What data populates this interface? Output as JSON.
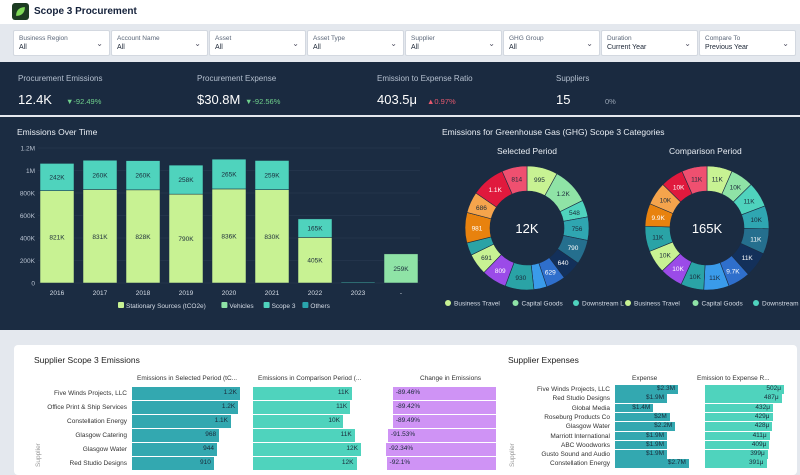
{
  "app": {
    "title": "Scope 3 Procurement",
    "logo_icon": "leaf-icon"
  },
  "filters": [
    {
      "label": "Business Region",
      "value": "All"
    },
    {
      "label": "Account Name",
      "value": "All"
    },
    {
      "label": "Asset",
      "value": "All"
    },
    {
      "label": "Asset Type",
      "value": "All"
    },
    {
      "label": "Supplier",
      "value": "All"
    },
    {
      "label": "GHG Group",
      "value": "All"
    },
    {
      "label": "Duration",
      "value": "Current Year"
    },
    {
      "label": "Compare To",
      "value": "Previous Year"
    }
  ],
  "kpis": [
    {
      "label": "Procurement Emissions",
      "value": "12.4K",
      "delta": "▼-92.49%",
      "trend": "down"
    },
    {
      "label": "Procurement Expense",
      "value": "$30.8M",
      "delta": "▼-92.56%",
      "trend": "down"
    },
    {
      "label": "Emission to Expense Ratio",
      "value": "403.5μ",
      "delta": "▲0.97%",
      "trend": "up"
    },
    {
      "label": "Suppliers",
      "value": "15",
      "delta": "0%",
      "trend": "flat"
    }
  ],
  "colors": {
    "up": "#e8596e",
    "down": "#6fd08c",
    "flat": "#9aa6b5"
  },
  "chart_data": [
    {
      "type": "bar",
      "stacked": true,
      "title": "Emissions Over Time",
      "categories": [
        "2016",
        "2017",
        "2018",
        "2019",
        "2020",
        "2021",
        "2022",
        "2023",
        "-"
      ],
      "yticks": [
        "0",
        "200K",
        "400K",
        "600K",
        "800K",
        "1M",
        "1.2M"
      ],
      "ylim": [
        0,
        1200000
      ],
      "grid": true,
      "legend": "bottom",
      "series": [
        {
          "name": "Stationary Sources (tCO2e)",
          "color": "#c8f293",
          "values": [
            821000,
            831000,
            828000,
            790000,
            836000,
            830000,
            405000,
            0,
            0
          ],
          "labels": [
            "821K",
            "831K",
            "828K",
            "790K",
            "836K",
            "830K",
            "405K",
            "",
            ""
          ]
        },
        {
          "name": "Vehicles",
          "color": "#8fe3a6",
          "values": [
            0,
            0,
            0,
            0,
            0,
            0,
            0,
            0,
            259000
          ],
          "labels": [
            "",
            "",
            "",
            "",
            "",
            "",
            "",
            "",
            "259K"
          ]
        },
        {
          "name": "Scope 3",
          "color": "#4fd3bd",
          "values": [
            242000,
            260000,
            260000,
            258000,
            265000,
            259000,
            165000,
            8000,
            0
          ],
          "labels": [
            "242K",
            "260K",
            "260K",
            "258K",
            "265K",
            "259K",
            "165K",
            "",
            ""
          ]
        },
        {
          "name": "Others",
          "color": "#2aa5ad",
          "values": [
            0,
            0,
            0,
            0,
            0,
            0,
            0,
            0,
            0
          ],
          "labels": [
            "",
            "",
            "",
            "",
            "",
            "",
            "",
            "",
            ""
          ]
        }
      ]
    },
    {
      "type": "pie",
      "title": "Emissions for Greenhouse Gas (GHG) Scope 3 Categories",
      "subtitle": "Selected Period",
      "center_label": "12K",
      "values": [
        995,
        1200,
        548,
        756,
        790,
        640,
        629,
        420,
        930,
        809,
        691,
        410,
        981,
        686,
        1100,
        814
      ],
      "labels": [
        "995",
        "1.2K",
        "548",
        "756",
        "790",
        "640",
        "629",
        "",
        "930",
        "809",
        "691",
        "",
        "981",
        "686",
        "1.1K",
        "814"
      ],
      "legend": [
        "Business Travel",
        "Capital Goods",
        "Downstream L"
      ]
    },
    {
      "type": "pie",
      "subtitle": "Comparison Period",
      "center_label": "165K",
      "values": [
        11000,
        10000,
        11000,
        10000,
        11000,
        11000,
        9700,
        11000,
        10000,
        10000,
        10000,
        11000,
        9900,
        10000,
        10000,
        11000
      ],
      "labels": [
        "11K",
        "10K",
        "11K",
        "10K",
        "11K",
        "11K",
        "9.7K",
        "11K",
        "10K",
        "10K",
        "10K",
        "11K",
        "9.9K",
        "10K",
        "10K",
        "11K"
      ],
      "legend": [
        "Business Travel",
        "Capital Goods",
        "Downstream L"
      ]
    }
  ],
  "donut_colors": [
    "#c8f293",
    "#8fe3a6",
    "#4fd3bd",
    "#2fa6b1",
    "#256f8e",
    "#13305a",
    "#2f6fcc",
    "#3a9bea",
    "#2aa3a6",
    "#9b4be8",
    "#c8f293",
    "#2aa3a6",
    "#e8820e",
    "#f5a44c",
    "#e0193d",
    "#ef5070"
  ],
  "supplier_emissions": {
    "title": "Supplier Scope 3 Emissions",
    "axis": "Supplier",
    "columns": [
      "Emissions in Selected Period (tC...",
      "Emissions in Comparison Period (...",
      "Change in Emissions"
    ],
    "rows": [
      {
        "name": "Five Winds Projects, LLC",
        "sel": 1200,
        "sel_l": "1.2K",
        "cmp": 11000,
        "cmp_l": "11K",
        "chg": "-89.46%"
      },
      {
        "name": "Office Print & Ship Services",
        "sel": 1180,
        "sel_l": "1.2K",
        "cmp": 10800,
        "cmp_l": "11K",
        "chg": "-89.42%"
      },
      {
        "name": "Constellation Energy",
        "sel": 1100,
        "sel_l": "1.1K",
        "cmp": 10000,
        "cmp_l": "10K",
        "chg": "-89.49%"
      },
      {
        "name": "Glasgow Catering",
        "sel": 968,
        "sel_l": "968",
        "cmp": 11300,
        "cmp_l": "11K",
        "chg": "-91.53%"
      },
      {
        "name": "Glasgow Water",
        "sel": 944,
        "sel_l": "944",
        "cmp": 12000,
        "cmp_l": "12K",
        "chg": "-92.34%"
      },
      {
        "name": "Red Studio Designs",
        "sel": 910,
        "sel_l": "910",
        "cmp": 11500,
        "cmp_l": "12K",
        "chg": "-92.1%"
      }
    ]
  },
  "supplier_expenses": {
    "title": "Supplier Expenses",
    "axis": "Supplier",
    "columns": [
      "Expense",
      "Emission to Expense R..."
    ],
    "rows": [
      {
        "name": "Five Winds Projects, LLC",
        "exp": 2.3,
        "exp_l": "$2.3M",
        "r": 502,
        "r_l": "502μ"
      },
      {
        "name": "Red Studio Designs",
        "exp": 1.9,
        "exp_l": "$1.9M",
        "r": 487,
        "r_l": "487μ"
      },
      {
        "name": "Global Media",
        "exp": 1.4,
        "exp_l": "$1.4M",
        "r": 432,
        "r_l": "432μ"
      },
      {
        "name": "Roseburg Products Co",
        "exp": 2.0,
        "exp_l": "$2M",
        "r": 429,
        "r_l": "429μ"
      },
      {
        "name": "Glasgow Water",
        "exp": 2.2,
        "exp_l": "$2.2M",
        "r": 428,
        "r_l": "428μ"
      },
      {
        "name": "Marriott International",
        "exp": 1.9,
        "exp_l": "$1.9M",
        "r": 411,
        "r_l": "411μ"
      },
      {
        "name": "ABC Woodworks",
        "exp": 1.9,
        "exp_l": "$1.9M",
        "r": 409,
        "r_l": "409μ"
      },
      {
        "name": "Gusto Sound and Audio",
        "exp": 1.9,
        "exp_l": "$1.9M",
        "r": 399,
        "r_l": "399μ"
      },
      {
        "name": "Constellation Energy",
        "exp": 2.7,
        "exp_l": "$2.7M",
        "r": 391,
        "r_l": "391μ"
      }
    ]
  }
}
